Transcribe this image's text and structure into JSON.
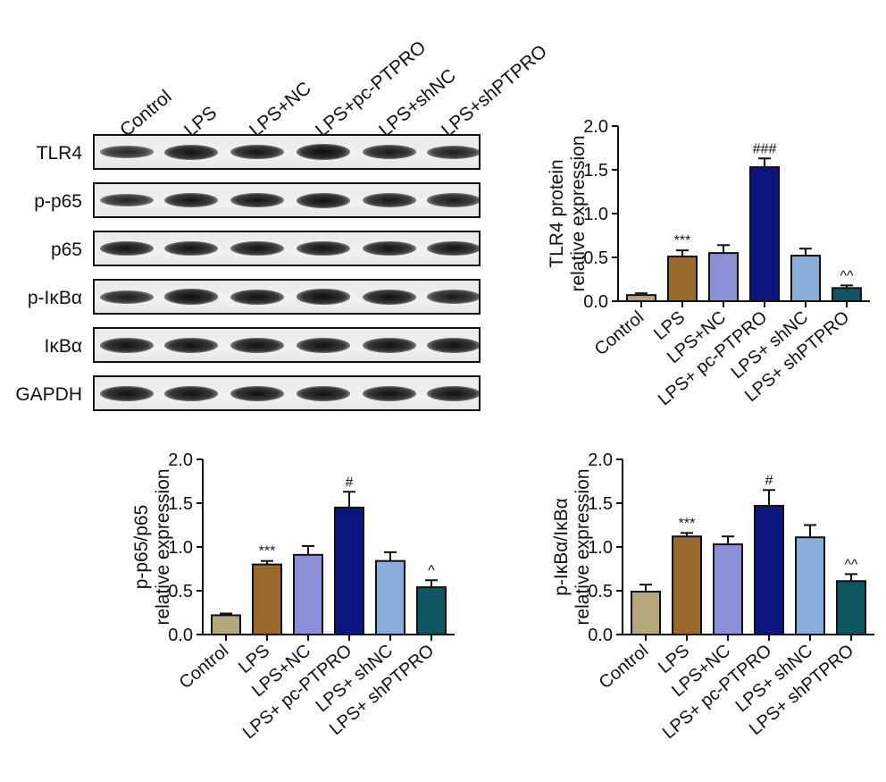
{
  "blot": {
    "lanes": [
      "Control",
      "LPS",
      "LPS+NC",
      "LPS+pc-PTPRO",
      "LPS+shNC",
      "LPS+shPTPRO"
    ],
    "rows": [
      {
        "label": "TLR4",
        "intensity": [
          0.55,
          0.9,
          0.85,
          1.0,
          0.8,
          0.7
        ]
      },
      {
        "label": "p-p65",
        "intensity": [
          0.6,
          0.85,
          0.85,
          0.9,
          0.8,
          0.75
        ]
      },
      {
        "label": "p65",
        "intensity": [
          0.85,
          0.85,
          0.85,
          0.85,
          0.85,
          0.85
        ]
      },
      {
        "label": "p-IκBα",
        "intensity": [
          0.7,
          0.95,
          0.9,
          0.95,
          0.9,
          0.75
        ]
      },
      {
        "label": "IκBα",
        "intensity": [
          0.9,
          0.9,
          0.9,
          0.9,
          0.9,
          0.9
        ]
      },
      {
        "label": "GAPDH",
        "intensity": [
          0.9,
          0.9,
          0.9,
          0.9,
          0.9,
          0.9
        ]
      }
    ]
  },
  "chart_data": [
    {
      "type": "bar",
      "ylabel": [
        "TLR4 protein",
        "relative expression"
      ],
      "categories": [
        "Control",
        "LPS",
        "LPS+NC",
        "LPS+ pc-PTPRO",
        "LPS+ shNC",
        "LPS+ shPTPRO"
      ],
      "values": [
        0.07,
        0.51,
        0.55,
        1.53,
        0.52,
        0.15
      ],
      "errors": [
        0.02,
        0.07,
        0.09,
        0.1,
        0.08,
        0.03
      ],
      "annotations": [
        "",
        "***",
        "",
        "###",
        "",
        "^^"
      ],
      "ylim": [
        0,
        2.0
      ],
      "yticks": [
        "0.0",
        "0.5",
        "1.0",
        "1.5",
        "2.0"
      ],
      "colors": [
        "#b5a77b",
        "#9a6a2c",
        "#8b8fd6",
        "#0d1580",
        "#8aaedb",
        "#0e5561"
      ]
    },
    {
      "type": "bar",
      "ylabel": [
        "p-p65/p65",
        "relative expression"
      ],
      "categories": [
        "Control",
        "LPS",
        "LPS+NC",
        "LPS+ pc-PTPRO",
        "LPS+ shNC",
        "LPS+ shPTPRO"
      ],
      "values": [
        0.22,
        0.8,
        0.91,
        1.45,
        0.84,
        0.54
      ],
      "errors": [
        0.02,
        0.04,
        0.1,
        0.18,
        0.1,
        0.08
      ],
      "annotations": [
        "",
        "***",
        "",
        "#",
        "",
        "^"
      ],
      "ylim": [
        0,
        2.0
      ],
      "yticks": [
        "0.0",
        "0.5",
        "1.0",
        "1.5",
        "2.0"
      ],
      "colors": [
        "#b5a77b",
        "#9a6a2c",
        "#8b8fd6",
        "#0d1580",
        "#8aaedb",
        "#0e5561"
      ]
    },
    {
      "type": "bar",
      "ylabel": [
        "p-IκBα/IκBα",
        "relative expression"
      ],
      "categories": [
        "Control",
        "LPS",
        "LPS+NC",
        "LPS+ pc-PTPRO",
        "LPS+ shNC",
        "LPS+ shPTPRO"
      ],
      "values": [
        0.49,
        1.12,
        1.03,
        1.47,
        1.11,
        0.61
      ],
      "errors": [
        0.08,
        0.04,
        0.09,
        0.18,
        0.14,
        0.08
      ],
      "annotations": [
        "",
        "***",
        "",
        "#",
        "",
        "^^"
      ],
      "ylim": [
        0,
        2.0
      ],
      "yticks": [
        "0.0",
        "0.5",
        "1.0",
        "1.5",
        "2.0"
      ],
      "colors": [
        "#b5a77b",
        "#9a6a2c",
        "#8b8fd6",
        "#0d1580",
        "#8aaedb",
        "#0e5561"
      ]
    }
  ]
}
